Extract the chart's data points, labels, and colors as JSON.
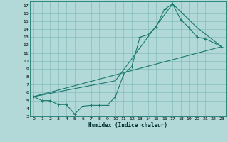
{
  "xlabel": "Humidex (Indice chaleur)",
  "bg_color": "#b2d8d8",
  "grid_color": "#7ab8b8",
  "line_color": "#1a7a6e",
  "xlim": [
    -0.5,
    23.5
  ],
  "ylim": [
    3,
    17.5
  ],
  "yticks": [
    3,
    4,
    5,
    6,
    7,
    8,
    9,
    10,
    11,
    12,
    13,
    14,
    15,
    16,
    17
  ],
  "xticks": [
    0,
    1,
    2,
    3,
    4,
    5,
    6,
    7,
    8,
    9,
    10,
    11,
    12,
    13,
    14,
    15,
    16,
    17,
    18,
    19,
    20,
    21,
    22,
    23
  ],
  "line1_x": [
    0,
    1,
    2,
    3,
    4,
    5,
    6,
    7,
    8,
    9,
    10,
    11,
    12,
    13,
    14,
    15,
    16,
    17,
    18,
    19,
    20,
    21,
    22,
    23
  ],
  "line1_y": [
    5.5,
    5.0,
    5.0,
    4.5,
    4.5,
    3.3,
    4.3,
    4.4,
    4.4,
    4.4,
    5.5,
    8.3,
    9.3,
    13.0,
    13.3,
    14.3,
    16.5,
    17.2,
    15.2,
    14.2,
    13.0,
    12.8,
    12.3,
    11.8
  ],
  "line2_x": [
    0,
    23
  ],
  "line2_y": [
    5.5,
    11.8
  ],
  "line3_x": [
    0,
    10,
    17,
    20,
    23
  ],
  "line3_y": [
    5.5,
    7.5,
    17.2,
    14.2,
    11.8
  ],
  "marker_size": 2.5,
  "line_width": 0.8
}
